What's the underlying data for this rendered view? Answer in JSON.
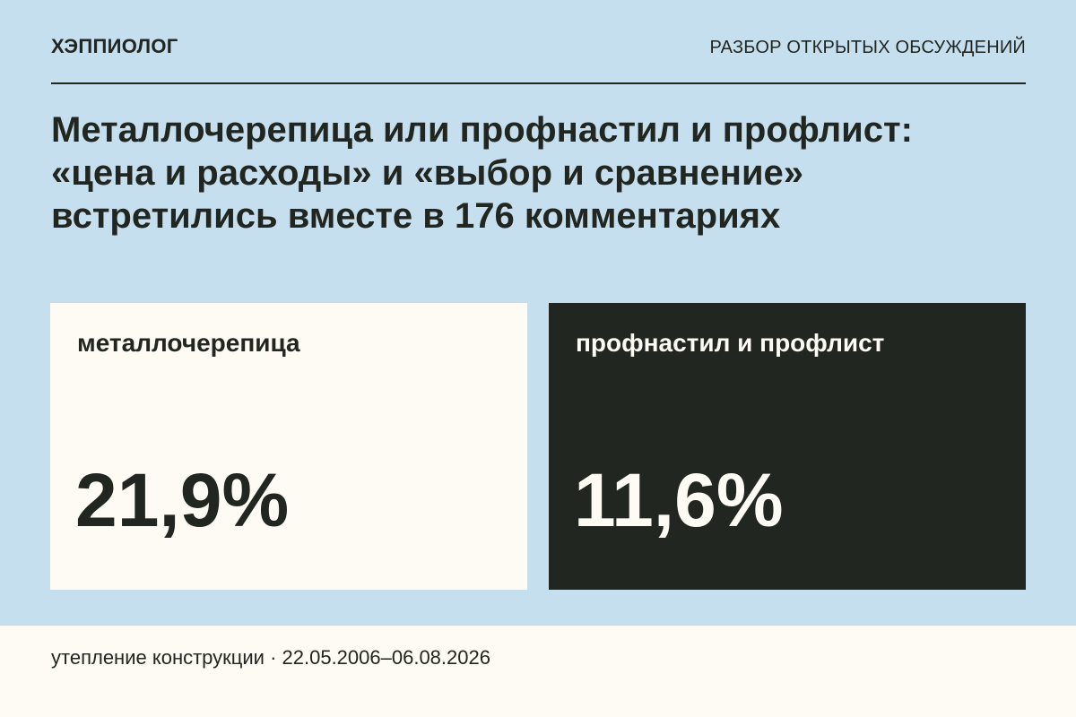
{
  "header": {
    "brand": "ХЭППИОЛОГ",
    "section": "РАЗБОР ОТКРЫТЫХ ОБСУЖДЕНИЙ"
  },
  "headline": {
    "lines": [
      "Металлочерепица или профнастил и профлист:",
      "«цена и расходы» и «выбор и сравнение»",
      "встретились вместе в 176 комментариях"
    ]
  },
  "cards": [
    {
      "label": "металлочерепица",
      "value": "21,9%"
    },
    {
      "label": "профнастил и профлист",
      "value": "11,6%"
    }
  ],
  "footer": {
    "text": "утепление конструкции · 22.05.2006–06.08.2026"
  },
  "colors": {
    "background": "#c6dfee",
    "light_card": "#fdfbf3",
    "dark_card": "#222620"
  }
}
